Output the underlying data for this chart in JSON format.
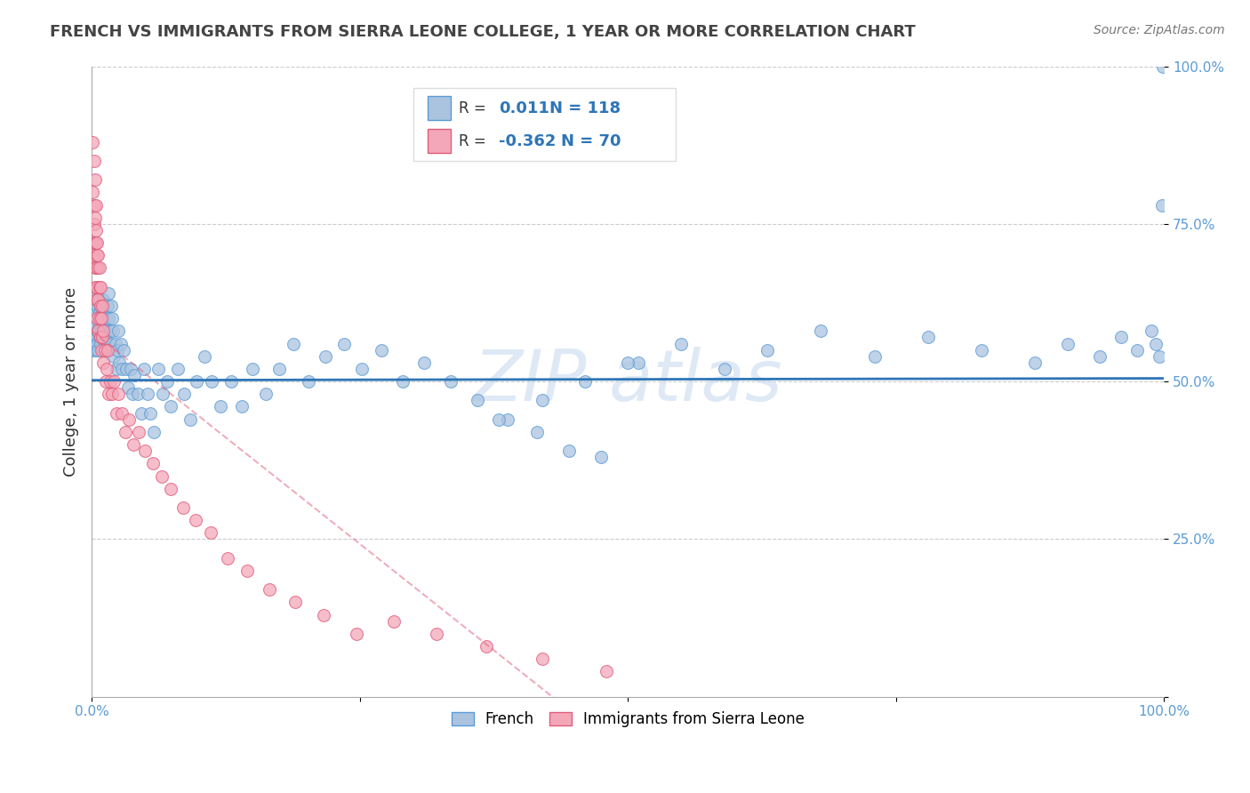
{
  "title": "FRENCH VS IMMIGRANTS FROM SIERRA LEONE COLLEGE, 1 YEAR OR MORE CORRELATION CHART",
  "source": "Source: ZipAtlas.com",
  "ylabel": "College, 1 year or more",
  "blue_color": "#2e75b6",
  "pink_color": "#e05c7a",
  "blue_scatter_color": "#aac4e0",
  "blue_edge_color": "#5b9bd5",
  "pink_scatter_color": "#f4a7b9",
  "pink_edge_color": "#e05c7a",
  "grid_color": "#cccccc",
  "background_color": "#ffffff",
  "marker_size": 100,
  "R_blue": 0.011,
  "N_blue": 118,
  "R_pink": -0.362,
  "N_pink": 70,
  "blue_x": [
    0.001,
    0.001,
    0.002,
    0.002,
    0.002,
    0.003,
    0.003,
    0.003,
    0.004,
    0.004,
    0.004,
    0.004,
    0.005,
    0.005,
    0.005,
    0.005,
    0.006,
    0.006,
    0.006,
    0.007,
    0.007,
    0.007,
    0.008,
    0.008,
    0.008,
    0.009,
    0.009,
    0.01,
    0.01,
    0.01,
    0.011,
    0.011,
    0.012,
    0.012,
    0.013,
    0.013,
    0.014,
    0.015,
    0.015,
    0.016,
    0.016,
    0.017,
    0.018,
    0.018,
    0.019,
    0.02,
    0.021,
    0.022,
    0.023,
    0.024,
    0.025,
    0.026,
    0.027,
    0.028,
    0.03,
    0.032,
    0.034,
    0.036,
    0.038,
    0.04,
    0.043,
    0.046,
    0.049,
    0.052,
    0.055,
    0.058,
    0.062,
    0.066,
    0.07,
    0.074,
    0.08,
    0.086,
    0.092,
    0.098,
    0.105,
    0.112,
    0.12,
    0.13,
    0.14,
    0.15,
    0.162,
    0.175,
    0.188,
    0.202,
    0.218,
    0.235,
    0.252,
    0.27,
    0.29,
    0.31,
    0.335,
    0.36,
    0.388,
    0.415,
    0.445,
    0.475,
    0.51,
    0.55,
    0.59,
    0.63,
    0.68,
    0.73,
    0.78,
    0.83,
    0.88,
    0.91,
    0.94,
    0.96,
    0.975,
    0.988,
    0.992,
    0.996,
    0.998,
    0.999,
    0.38,
    0.42,
    0.46,
    0.5
  ],
  "blue_y": [
    0.6,
    0.55,
    0.58,
    0.62,
    0.56,
    0.59,
    0.63,
    0.57,
    0.61,
    0.55,
    0.64,
    0.59,
    0.57,
    0.62,
    0.56,
    0.6,
    0.58,
    0.63,
    0.55,
    0.61,
    0.59,
    0.57,
    0.62,
    0.56,
    0.6,
    0.58,
    0.63,
    0.57,
    0.61,
    0.55,
    0.59,
    0.63,
    0.57,
    0.61,
    0.55,
    0.6,
    0.58,
    0.62,
    0.56,
    0.6,
    0.64,
    0.58,
    0.62,
    0.56,
    0.6,
    0.58,
    0.54,
    0.56,
    0.52,
    0.55,
    0.58,
    0.53,
    0.56,
    0.52,
    0.55,
    0.52,
    0.49,
    0.52,
    0.48,
    0.51,
    0.48,
    0.45,
    0.52,
    0.48,
    0.45,
    0.42,
    0.52,
    0.48,
    0.5,
    0.46,
    0.52,
    0.48,
    0.44,
    0.5,
    0.54,
    0.5,
    0.46,
    0.5,
    0.46,
    0.52,
    0.48,
    0.52,
    0.56,
    0.5,
    0.54,
    0.56,
    0.52,
    0.55,
    0.5,
    0.53,
    0.5,
    0.47,
    0.44,
    0.42,
    0.39,
    0.38,
    0.53,
    0.56,
    0.52,
    0.55,
    0.58,
    0.54,
    0.57,
    0.55,
    0.53,
    0.56,
    0.54,
    0.57,
    0.55,
    0.58,
    0.56,
    0.54,
    0.78,
    1.0,
    0.44,
    0.47,
    0.5,
    0.53
  ],
  "pink_x": [
    0.001,
    0.001,
    0.001,
    0.002,
    0.002,
    0.002,
    0.002,
    0.003,
    0.003,
    0.003,
    0.003,
    0.003,
    0.004,
    0.004,
    0.004,
    0.004,
    0.004,
    0.005,
    0.005,
    0.005,
    0.005,
    0.006,
    0.006,
    0.006,
    0.006,
    0.007,
    0.007,
    0.007,
    0.008,
    0.008,
    0.008,
    0.009,
    0.009,
    0.01,
    0.01,
    0.011,
    0.011,
    0.012,
    0.013,
    0.014,
    0.015,
    0.016,
    0.017,
    0.019,
    0.021,
    0.023,
    0.025,
    0.028,
    0.031,
    0.035,
    0.039,
    0.044,
    0.05,
    0.057,
    0.065,
    0.074,
    0.085,
    0.097,
    0.111,
    0.127,
    0.145,
    0.166,
    0.19,
    0.216,
    0.247,
    0.282,
    0.322,
    0.368,
    0.42,
    0.48
  ],
  "pink_y": [
    0.88,
    0.8,
    0.72,
    0.85,
    0.78,
    0.7,
    0.75,
    0.82,
    0.76,
    0.68,
    0.72,
    0.65,
    0.78,
    0.72,
    0.68,
    0.74,
    0.63,
    0.7,
    0.65,
    0.72,
    0.6,
    0.68,
    0.63,
    0.7,
    0.58,
    0.65,
    0.6,
    0.68,
    0.62,
    0.57,
    0.65,
    0.6,
    0.55,
    0.62,
    0.57,
    0.58,
    0.53,
    0.55,
    0.5,
    0.52,
    0.55,
    0.48,
    0.5,
    0.48,
    0.5,
    0.45,
    0.48,
    0.45,
    0.42,
    0.44,
    0.4,
    0.42,
    0.39,
    0.37,
    0.35,
    0.33,
    0.3,
    0.28,
    0.26,
    0.22,
    0.2,
    0.17,
    0.15,
    0.13,
    0.1,
    0.12,
    0.1,
    0.08,
    0.06,
    0.04
  ],
  "blue_trend_intercept": 0.502,
  "blue_trend_slope": 0.003,
  "pink_trend_intercept": 0.58,
  "pink_trend_slope": -1.35,
  "xlim": [
    0.0,
    1.0
  ],
  "ylim": [
    0.0,
    1.0
  ],
  "xticks": [
    0.0,
    0.25,
    0.5,
    0.75,
    1.0
  ],
  "xticklabels": [
    "0.0%",
    "",
    "",
    "",
    "100.0%"
  ],
  "ytick_positions": [
    0.0,
    0.25,
    0.5,
    0.75,
    1.0
  ],
  "ytick_labels_right": [
    "",
    "25.0%",
    "50.0%",
    "75.0%",
    "100.0%"
  ],
  "watermark_text": "ZIP atlas",
  "legend_R_blue": "0.011",
  "legend_N_blue": "118",
  "legend_R_pink": "-0.362",
  "legend_N_pink": "70"
}
